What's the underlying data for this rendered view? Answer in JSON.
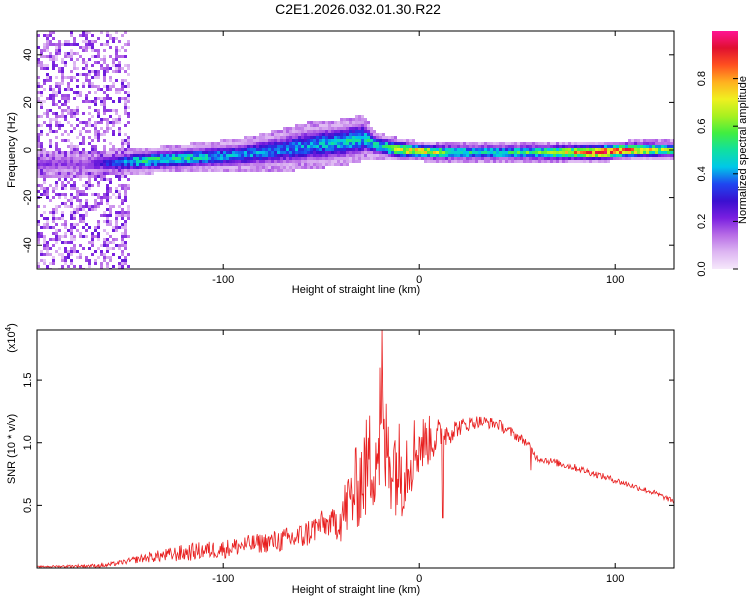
{
  "figure_title": "C2E1.2026.032.01.30.R22",
  "colors": {
    "snr_line": "#e82020",
    "frame": "#000000",
    "colorbar_stops": [
      "#f6e9fb",
      "#ddb6f2",
      "#b86ce6",
      "#7a1fe0",
      "#3a10d0",
      "#1f46f0",
      "#00c8e8",
      "#10e0a0",
      "#40ee40",
      "#a8f020",
      "#f0f020",
      "#ffb020",
      "#ff5020",
      "#e01030",
      "#ff1493"
    ]
  },
  "chart_data": [
    {
      "type": "heatmap",
      "id": "spectrogram",
      "xlabel": "Height of straight line (km)",
      "ylabel": "Frequency (Hz)",
      "xlim": [
        -195,
        130
      ],
      "ylim": [
        -50,
        50
      ],
      "x_ticks": [
        -100,
        0,
        100
      ],
      "x_tick_labels": [
        "-100",
        "0",
        "100"
      ],
      "y_ticks": [
        40,
        20,
        0,
        -20,
        -40
      ],
      "y_tick_labels": [
        "40",
        "20",
        "0",
        "-20",
        "-40"
      ],
      "colorbar": {
        "label": "Normalized spectral amplitude",
        "range": [
          0,
          1
        ],
        "ticks": [
          0.0,
          0.2,
          0.4,
          0.6,
          0.8
        ],
        "tick_labels": [
          "0.0",
          "0.2",
          "0.4",
          "0.6",
          "0.8"
        ]
      },
      "band_center": [
        [
          -170,
          -6
        ],
        [
          -150,
          -5
        ],
        [
          -130,
          -4
        ],
        [
          -110,
          -3
        ],
        [
          -90,
          -2
        ],
        [
          -70,
          0
        ],
        [
          -55,
          2
        ],
        [
          -40,
          3
        ],
        [
          -28,
          5
        ],
        [
          -22,
          2
        ],
        [
          -10,
          0
        ],
        [
          10,
          -1
        ],
        [
          30,
          -1
        ],
        [
          60,
          -1
        ],
        [
          90,
          -1
        ],
        [
          110,
          0
        ],
        [
          130,
          0
        ]
      ],
      "band_halfwidth": [
        [
          -170,
          4
        ],
        [
          -130,
          4
        ],
        [
          -90,
          5
        ],
        [
          -60,
          7
        ],
        [
          -30,
          7
        ],
        [
          -22,
          4
        ],
        [
          0,
          3
        ],
        [
          60,
          3
        ],
        [
          100,
          3
        ],
        [
          130,
          3
        ]
      ],
      "peak_amplitude": [
        [
          -170,
          0.2
        ],
        [
          -145,
          0.5
        ],
        [
          -130,
          0.55
        ],
        [
          -100,
          0.45
        ],
        [
          -70,
          0.4
        ],
        [
          -50,
          0.45
        ],
        [
          -30,
          0.5
        ],
        [
          -20,
          0.5
        ],
        [
          -10,
          0.75
        ],
        [
          0,
          0.8
        ],
        [
          20,
          0.55
        ],
        [
          50,
          0.55
        ],
        [
          75,
          0.75
        ],
        [
          90,
          0.95
        ],
        [
          100,
          0.95
        ],
        [
          110,
          0.85
        ],
        [
          130,
          0.6
        ]
      ],
      "noise_region": [
        -195,
        -148
      ]
    },
    {
      "type": "line",
      "id": "snr",
      "xlabel": "Height of straight line (km)",
      "ylabel": "SNR (10 * v/v)",
      "y_exponent_label": "(x10",
      "y_exponent_power": "4",
      "y_exponent_close": ")",
      "xlim": [
        -195,
        130
      ],
      "ylim": [
        0,
        1.9
      ],
      "x_ticks": [
        -100,
        0,
        100
      ],
      "x_tick_labels": [
        "-100",
        "0",
        "100"
      ],
      "y_ticks": [
        0.5,
        1.0,
        1.5
      ],
      "y_tick_labels": [
        "0.5",
        "1.0",
        "1.5"
      ],
      "series": [
        {
          "name": "SNR",
          "envelope_x": [
            -195,
            -160,
            -150,
            -140,
            -130,
            -120,
            -110,
            -100,
            -90,
            -80,
            -70,
            -60,
            -50,
            -45,
            -40,
            -35,
            -30,
            -25,
            -22,
            -20,
            -18,
            -15,
            -12,
            -10,
            -8,
            -5,
            0,
            5,
            10,
            12,
            15,
            20,
            25,
            30,
            40,
            50,
            55,
            60,
            70,
            80,
            90,
            100,
            110,
            120,
            130
          ],
          "envelope_y": [
            0.01,
            0.02,
            0.05,
            0.08,
            0.1,
            0.12,
            0.14,
            0.15,
            0.18,
            0.2,
            0.22,
            0.25,
            0.35,
            0.35,
            0.4,
            0.55,
            0.7,
            0.85,
            0.95,
            1.0,
            0.95,
            0.9,
            0.85,
            0.78,
            0.82,
            0.9,
            0.98,
            1.02,
            1.05,
            1.07,
            1.09,
            1.12,
            1.15,
            1.17,
            1.15,
            1.05,
            1.0,
            0.88,
            0.84,
            0.8,
            0.75,
            0.7,
            0.65,
            0.6,
            0.53
          ],
          "jitter_x": [
            -195,
            -150,
            -120,
            -80,
            -55,
            -45,
            -35,
            -25,
            -20,
            -15,
            -8,
            0,
            10,
            20,
            30,
            50,
            57,
            70,
            100,
            130
          ],
          "jitter_y": [
            0.005,
            0.02,
            0.07,
            0.08,
            0.12,
            0.1,
            0.3,
            0.45,
            0.5,
            0.45,
            0.4,
            0.25,
            0.15,
            0.07,
            0.05,
            0.04,
            0.03,
            0.03,
            0.025,
            0.02
          ],
          "annotated_points": [
            {
              "x": -19,
              "y": 1.92
            },
            {
              "x": -20,
              "y": 1.6
            },
            {
              "x": 12,
              "y": 0.4
            },
            {
              "x": 57,
              "y": 0.78
            }
          ]
        }
      ]
    }
  ]
}
